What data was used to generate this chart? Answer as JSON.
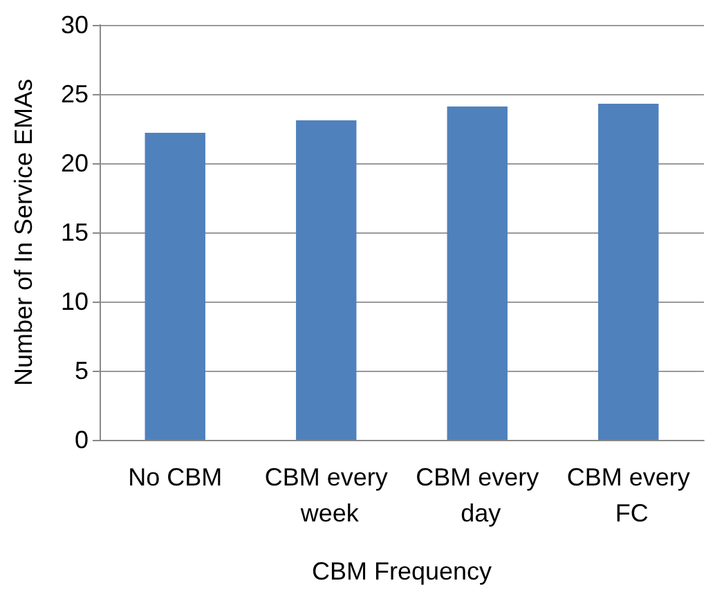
{
  "chart_data": {
    "type": "bar",
    "xlabel": "CBM Frequency",
    "ylabel": "Number of In Service EMAs",
    "categories": [
      "No CBM",
      "CBM every week",
      "CBM every day",
      "CBM every FC"
    ],
    "values": [
      22.2,
      23.1,
      24.1,
      24.3
    ],
    "color": "#4f81bd",
    "ylim": [
      0,
      30
    ],
    "yticks": [
      0,
      5,
      10,
      15,
      20,
      25,
      30
    ],
    "grid": "y"
  }
}
